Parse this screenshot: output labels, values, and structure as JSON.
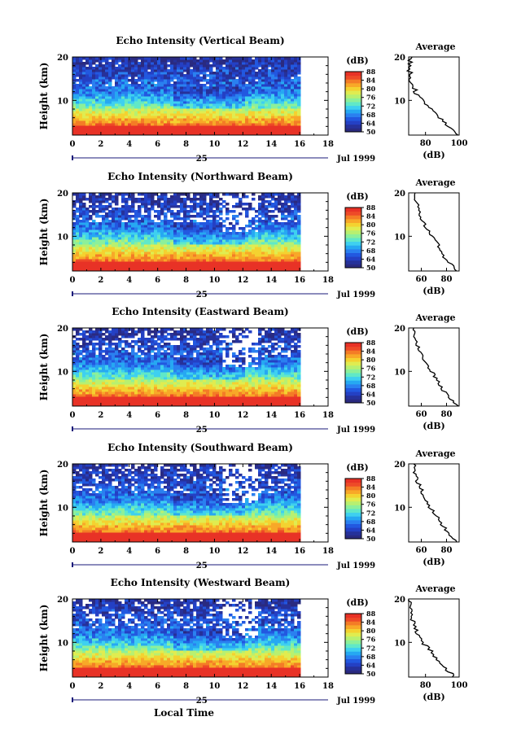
{
  "colors": {
    "colormap": [
      "#2a2a80",
      "#26319a",
      "#2440c4",
      "#2258e0",
      "#2a80f0",
      "#26a8f2",
      "#3ed0f0",
      "#60e8c8",
      "#8cf09a",
      "#b8f070",
      "#e0ec50",
      "#f4d230",
      "#f8a828",
      "#f47c26",
      "#ee4a28",
      "#e83226"
    ]
  },
  "time_axis": {
    "ticks": [
      "0",
      "2",
      "4",
      "6",
      "8",
      "10",
      "12",
      "14",
      "16",
      "18"
    ],
    "date_label": "Jul 1999",
    "day_label": "25"
  },
  "height_axis": {
    "ticks": [
      "10",
      "20"
    ],
    "label": "Height (km)"
  },
  "colorbar": {
    "unit": "(dB)",
    "ticks": [
      "50",
      "64",
      "68",
      "72",
      "76",
      "80",
      "84",
      "88"
    ]
  },
  "xlabel": "Local Time",
  "panels": [
    {
      "title": "Echo Intensity (Vertical Beam)",
      "profile_title": "Average",
      "profile_xlabel": "(dB)",
      "profile_xticks": [
        "80",
        "100"
      ]
    },
    {
      "title": "Echo Intensity (Northward Beam)",
      "profile_title": "Average",
      "profile_xlabel": "(dB)",
      "profile_xticks": [
        "60",
        "80"
      ]
    },
    {
      "title": "Echo Intensity (Eastward Beam)",
      "profile_title": "Average",
      "profile_xlabel": "(dB)",
      "profile_xticks": [
        "60",
        "80"
      ]
    },
    {
      "title": "Echo Intensity (Southward Beam)",
      "profile_title": "Average",
      "profile_xlabel": "(dB)",
      "profile_xticks": [
        "60",
        "80"
      ]
    },
    {
      "title": "Echo Intensity (Westward Beam)",
      "profile_title": "Average",
      "profile_xlabel": "(dB)",
      "profile_xticks": [
        "80",
        "100"
      ]
    }
  ],
  "chart_data": [
    {
      "type": "heatmap",
      "beam": "Vertical",
      "x": "Local Time (h)",
      "xlim": [
        0,
        18
      ],
      "data_xrange": [
        0,
        16
      ],
      "y": "Height (km)",
      "ylim": [
        2,
        20
      ],
      "colorbar_unit": "dB",
      "colorbar_range": [
        50,
        88
      ],
      "profile": {
        "type": "line",
        "xlim": [
          70,
          100
        ],
        "ylim": [
          2,
          20
        ],
        "height": [
          2,
          4,
          6,
          8,
          10,
          12,
          14,
          16,
          18,
          20
        ],
        "db": [
          99,
          94,
          88,
          84,
          78,
          74,
          72,
          71,
          70,
          72
        ]
      }
    },
    {
      "type": "heatmap",
      "beam": "Northward",
      "x": "Local Time (h)",
      "xlim": [
        0,
        18
      ],
      "data_xrange": [
        0,
        16
      ],
      "y": "Height (km)",
      "ylim": [
        2,
        20
      ],
      "colorbar_unit": "dB",
      "colorbar_range": [
        50,
        88
      ],
      "profile": {
        "type": "line",
        "xlim": [
          50,
          90
        ],
        "ylim": [
          2,
          20
        ],
        "height": [
          2,
          4,
          6,
          8,
          10,
          12,
          14,
          16,
          18,
          20
        ],
        "db": [
          88,
          82,
          76,
          73,
          68,
          64,
          60,
          58,
          56,
          55
        ]
      }
    },
    {
      "type": "heatmap",
      "beam": "Eastward",
      "x": "Local Time (h)",
      "xlim": [
        0,
        18
      ],
      "data_xrange": [
        0,
        16
      ],
      "y": "Height (km)",
      "ylim": [
        2,
        20
      ],
      "colorbar_unit": "dB",
      "colorbar_range": [
        50,
        88
      ],
      "profile": {
        "type": "line",
        "xlim": [
          50,
          90
        ],
        "ylim": [
          2,
          20
        ],
        "height": [
          2,
          4,
          6,
          8,
          10,
          12,
          14,
          16,
          18,
          20
        ],
        "db": [
          88,
          82,
          76,
          73,
          68,
          64,
          60,
          57,
          55,
          54
        ]
      }
    },
    {
      "type": "heatmap",
      "beam": "Southward",
      "x": "Local Time (h)",
      "xlim": [
        0,
        18
      ],
      "data_xrange": [
        0,
        16
      ],
      "y": "Height (km)",
      "ylim": [
        2,
        20
      ],
      "colorbar_unit": "dB",
      "colorbar_range": [
        50,
        88
      ],
      "profile": {
        "type": "line",
        "xlim": [
          50,
          90
        ],
        "ylim": [
          2,
          20
        ],
        "height": [
          2,
          4,
          6,
          8,
          10,
          12,
          14,
          16,
          18,
          20
        ],
        "db": [
          88,
          82,
          76,
          72,
          67,
          63,
          60,
          57,
          55,
          54
        ]
      }
    },
    {
      "type": "heatmap",
      "beam": "Westward",
      "x": "Local Time (h)",
      "xlim": [
        0,
        18
      ],
      "data_xrange": [
        0,
        16
      ],
      "y": "Height (km)",
      "ylim": [
        2,
        20
      ],
      "colorbar_unit": "dB",
      "colorbar_range": [
        50,
        88
      ],
      "profile": {
        "type": "line",
        "xlim": [
          70,
          100
        ],
        "ylim": [
          2,
          20
        ],
        "height": [
          2,
          4,
          6,
          8,
          10,
          12,
          14,
          16,
          18,
          20
        ],
        "db": [
          97,
          92,
          87,
          83,
          78,
          75,
          73,
          72,
          71,
          70
        ]
      }
    }
  ]
}
